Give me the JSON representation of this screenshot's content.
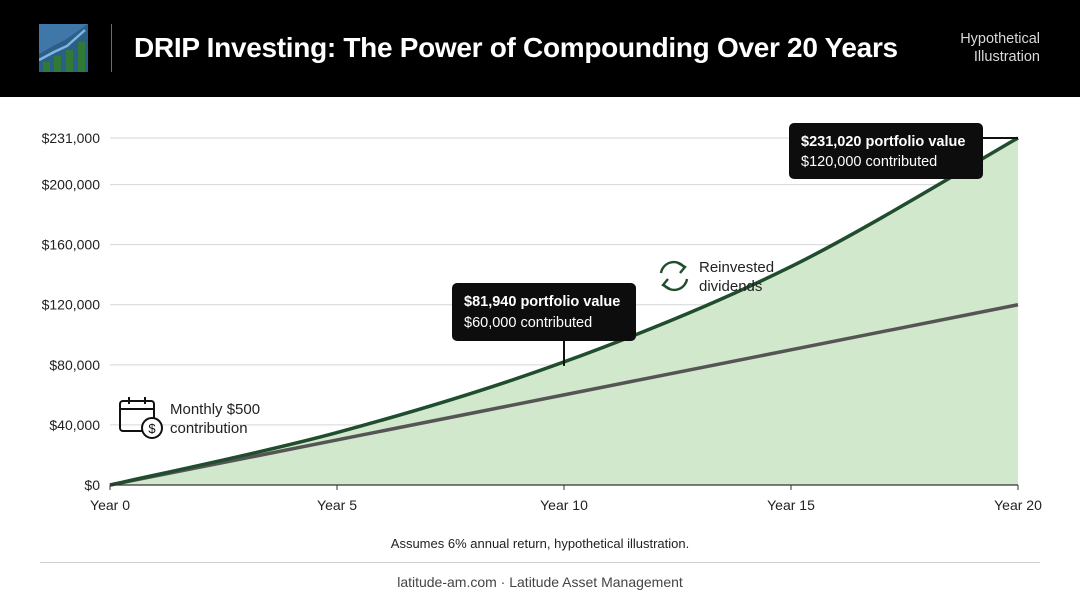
{
  "header": {
    "title": "DRIP Investing: The Power of Compounding Over 20 Years",
    "note_line1": "Hypothetical",
    "note_line2": "Illustration"
  },
  "chart_data": {
    "type": "area",
    "x": [
      0,
      5,
      10,
      15,
      20
    ],
    "x_tick_labels": [
      "Year 0",
      "Year 5",
      "Year 10",
      "Year 15",
      "Year 20"
    ],
    "xlim": [
      0,
      20
    ],
    "ylim": [
      0,
      231000
    ],
    "y_ticks": [
      0,
      40000,
      80000,
      120000,
      160000,
      200000,
      231000
    ],
    "y_tick_labels": [
      "$0",
      "$40,000",
      "$80,000",
      "$120,000",
      "$160,000",
      "$200,000",
      "$231,000"
    ],
    "grid": true,
    "series": [
      {
        "name": "Reinvested dividends",
        "color": "#1f4d2e",
        "fill": "#d1e8cc",
        "values": [
          0,
          34900,
          81940,
          145400,
          231020
        ]
      },
      {
        "name": "Monthly $500 contribution",
        "color": "#555555",
        "values": [
          0,
          30000,
          60000,
          90000,
          120000
        ]
      }
    ],
    "annotations": [
      {
        "x": 10,
        "y": 81940,
        "line1": "$81,940 portfolio value",
        "line2": "$60,000 contributed"
      },
      {
        "x": 20,
        "y": 231020,
        "line1": "$231,020 portfolio value",
        "line2": "$120,000 contributed"
      }
    ],
    "labels": {
      "reinvested_line1": "Reinvested",
      "reinvested_line2": "dividends",
      "contribution_line1": "Monthly $500",
      "contribution_line2": "contribution"
    }
  },
  "footnote": "Assumes 6% annual return, hypothetical illustration.",
  "source": "latitude-am.com · Latitude Asset Management",
  "colors": {
    "header_bg": "#000000",
    "accent_green": "#1f4d2e",
    "area_fill": "#d1e8cc",
    "contribution_line": "#555555"
  }
}
